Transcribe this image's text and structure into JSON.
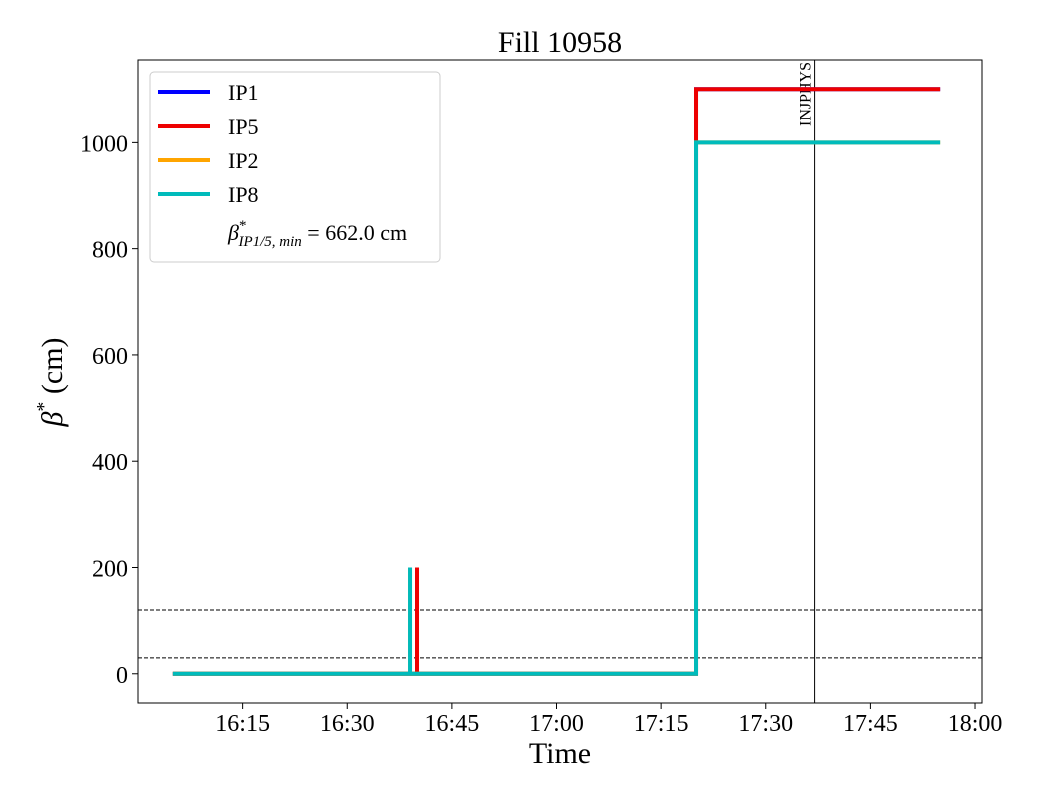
{
  "chart_data": {
    "type": "line",
    "title": "Fill 10958",
    "xlabel": "Time",
    "ylabel": {
      "symbol": "β",
      "sup": "*",
      "text": " (cm)"
    },
    "xlim": [
      "16:00",
      "18:01"
    ],
    "xticks": [
      "16:15",
      "16:30",
      "16:45",
      "17:00",
      "17:15",
      "17:30",
      "17:45",
      "18:00"
    ],
    "ylim": [
      -55,
      1155
    ],
    "yticks": [
      0,
      200,
      400,
      600,
      800,
      1000
    ],
    "series": [
      {
        "name": "IP1",
        "color": "#0000ff",
        "x": [
          "16:05",
          "16:40",
          "16:40",
          "16:40",
          "17:20",
          "17:20",
          "17:55"
        ],
        "values": [
          0,
          0,
          200,
          0,
          0,
          1100,
          1100
        ]
      },
      {
        "name": "IP5",
        "color": "#ee0000",
        "x": [
          "16:05",
          "16:40",
          "16:40",
          "16:40",
          "17:20",
          "17:20",
          "17:55"
        ],
        "values": [
          0,
          0,
          200,
          0,
          0,
          1100,
          1100
        ]
      },
      {
        "name": "IP2",
        "color": "#ffa500",
        "x": [
          "16:05",
          "16:39",
          "16:39",
          "16:39",
          "17:20",
          "17:20",
          "17:55"
        ],
        "values": [
          0,
          0,
          200,
          0,
          0,
          1000,
          1000
        ]
      },
      {
        "name": "IP8",
        "color": "#00bbbb",
        "x": [
          "16:05",
          "16:39",
          "16:39",
          "16:39",
          "17:20",
          "17:20",
          "17:55"
        ],
        "values": [
          0,
          0,
          200,
          0,
          0,
          1000,
          1000
        ]
      }
    ],
    "legend_note": {
      "symbol": "β",
      "sup": "*",
      "sub": "IP1/5, min",
      "text": " = 662.0 cm"
    },
    "legend": "upper left",
    "hlines": [
      120,
      30
    ],
    "annotations": [
      {
        "x": "17:37",
        "label": "INJPHYS"
      }
    ]
  }
}
